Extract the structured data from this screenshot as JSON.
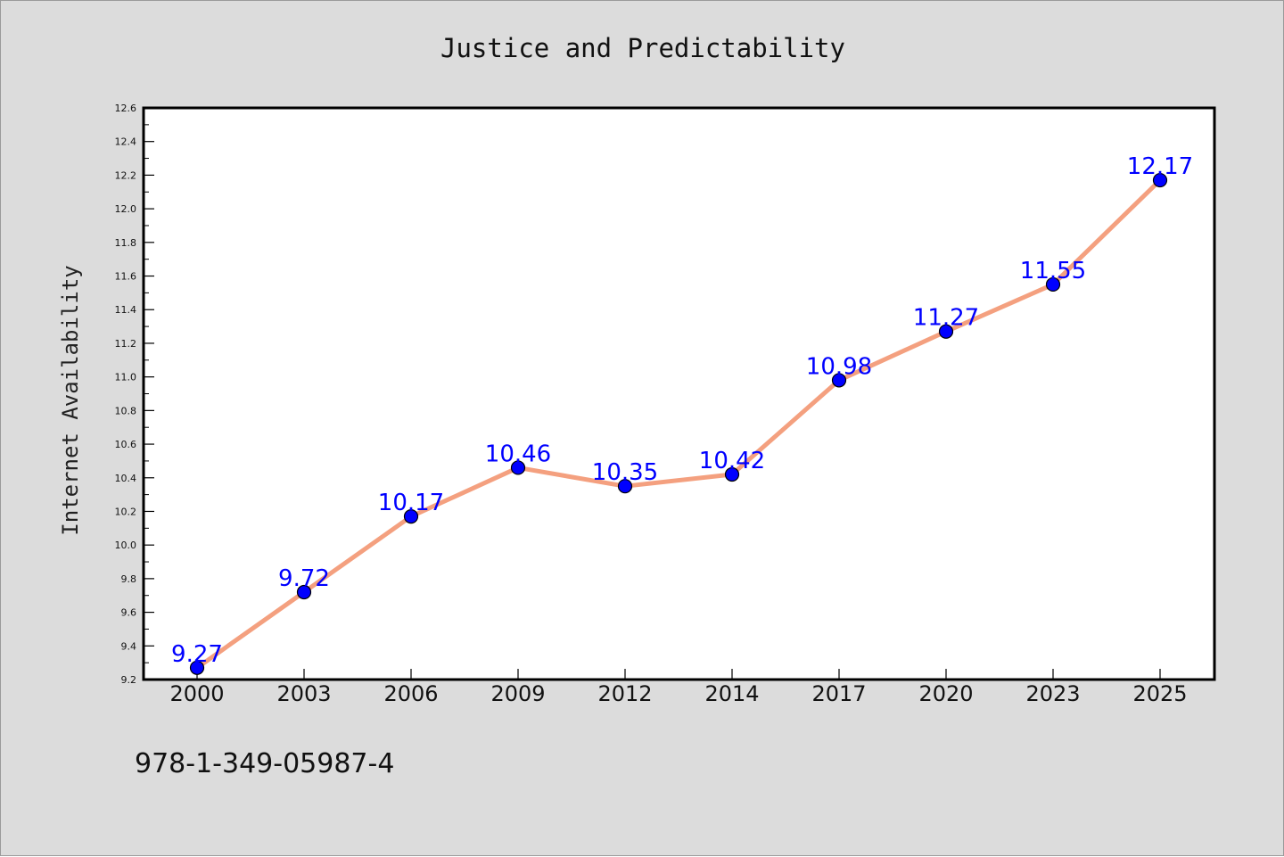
{
  "chart_data": {
    "type": "line",
    "title": "Justice and Predictability",
    "xlabel": "",
    "ylabel": "Internet Availability",
    "categories": [
      "2000",
      "2003",
      "2006",
      "2009",
      "2012",
      "2014",
      "2017",
      "2020",
      "2023",
      "2025"
    ],
    "series": [
      {
        "values": [
          9.27,
          9.72,
          10.17,
          10.46,
          10.35,
          10.42,
          10.98,
          11.27,
          11.55,
          12.17
        ],
        "data_labels": [
          "9.27",
          "9.72",
          "10.17",
          "10.46",
          "10.35",
          "10.42",
          "10.98",
          "11.27",
          "11.55",
          "12.17"
        ],
        "line_color": "#f4a07f",
        "marker_color": "#0000ff"
      }
    ],
    "ylim": [
      9.2,
      12.6
    ],
    "yticks": [
      "9.2",
      "9.4",
      "9.6",
      "9.8",
      "10.0",
      "10.2",
      "10.4",
      "10.6",
      "10.8",
      "11.0",
      "11.2",
      "11.4",
      "11.6",
      "11.8",
      "12.0",
      "12.2",
      "12.4",
      "12.6"
    ],
    "grid": false,
    "label_color": "#0000ff"
  },
  "footnote": "978-1-349-05987-4",
  "colors": {
    "figure_background": "#dcdcdc",
    "plot_background": "#ffffff"
  }
}
